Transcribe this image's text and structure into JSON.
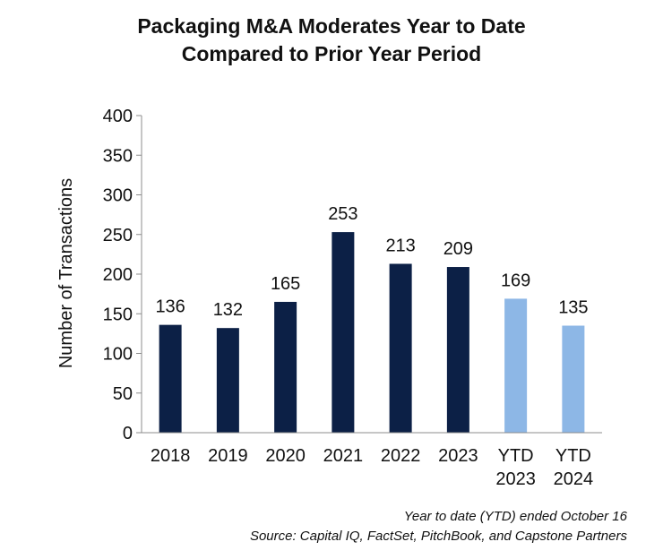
{
  "chart_data": {
    "type": "bar",
    "title": [
      "Packaging M&A Moderates Year to Date",
      "Compared to Prior Year Period"
    ],
    "ylabel": "Number of Transactions",
    "xlabel": "",
    "ylim": [
      0,
      400
    ],
    "yticks": [
      0,
      50,
      100,
      150,
      200,
      250,
      300,
      350,
      400
    ],
    "categories": [
      [
        "2018"
      ],
      [
        "2019"
      ],
      [
        "2020"
      ],
      [
        "2021"
      ],
      [
        "2022"
      ],
      [
        "2023"
      ],
      [
        "YTD",
        "2023"
      ],
      [
        "YTD",
        "2024"
      ]
    ],
    "values": [
      136,
      132,
      165,
      253,
      213,
      209,
      169,
      135
    ],
    "data_labels": [
      "136",
      "132",
      "165",
      "253",
      "213",
      "209",
      "169",
      "135"
    ],
    "colors": [
      "#0c2046",
      "#0c2046",
      "#0c2046",
      "#0c2046",
      "#0c2046",
      "#0c2046",
      "#8db7e6",
      "#8db7e6"
    ],
    "grid": false,
    "legend": "none"
  },
  "footnotes": {
    "ytd_note": "Year to date (YTD) ended October 16",
    "source": "Source: Capital IQ, FactSet, PitchBook, and Capstone Partners"
  }
}
